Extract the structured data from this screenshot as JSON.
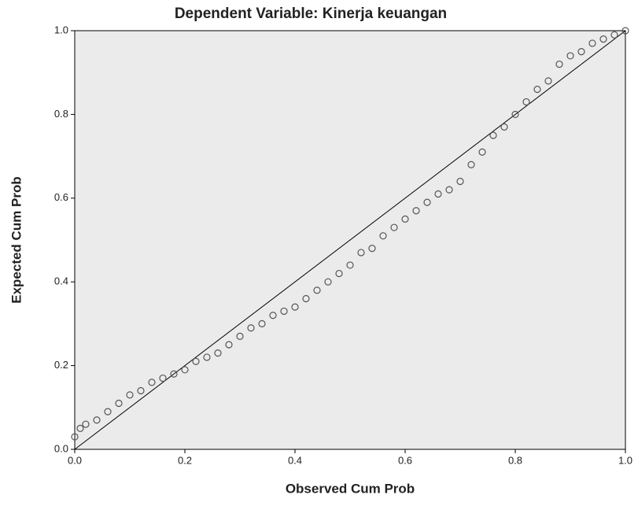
{
  "chart_data": {
    "type": "scatter",
    "title": "Dependent Variable: Kinerja keuangan",
    "x_label": "Observed Cum Prob",
    "y_label": "Expected Cum Prob",
    "x": [
      0.0,
      0.01,
      0.02,
      0.04,
      0.06,
      0.08,
      0.1,
      0.12,
      0.14,
      0.16,
      0.18,
      0.2,
      0.22,
      0.24,
      0.26,
      0.28,
      0.3,
      0.32,
      0.34,
      0.36,
      0.38,
      0.4,
      0.42,
      0.44,
      0.46,
      0.48,
      0.5,
      0.52,
      0.54,
      0.56,
      0.58,
      0.6,
      0.62,
      0.64,
      0.66,
      0.68,
      0.7,
      0.72,
      0.74,
      0.76,
      0.78,
      0.8,
      0.82,
      0.84,
      0.86,
      0.88,
      0.9,
      0.92,
      0.94,
      0.96,
      0.98,
      1.0
    ],
    "values": [
      0.03,
      0.05,
      0.06,
      0.07,
      0.09,
      0.11,
      0.13,
      0.14,
      0.16,
      0.17,
      0.18,
      0.19,
      0.21,
      0.22,
      0.23,
      0.25,
      0.27,
      0.29,
      0.3,
      0.32,
      0.33,
      0.34,
      0.36,
      0.38,
      0.4,
      0.42,
      0.44,
      0.47,
      0.48,
      0.51,
      0.53,
      0.55,
      0.57,
      0.59,
      0.61,
      0.62,
      0.64,
      0.68,
      0.71,
      0.75,
      0.77,
      0.8,
      0.83,
      0.86,
      0.88,
      0.92,
      0.94,
      0.95,
      0.97,
      0.98,
      0.99,
      1.0
    ],
    "reference_line": {
      "x": [
        0,
        1
      ],
      "y": [
        0,
        1
      ]
    },
    "marker_color": "#555555",
    "background": "#ebebeb",
    "xlim": [
      0,
      1
    ],
    "ylim": [
      0,
      1
    ],
    "xticks": [
      {
        "value": 0,
        "label": "0.0"
      },
      0.2,
      0.4,
      0.6,
      0.8,
      {
        "value": 1,
        "label": "1.0"
      }
    ],
    "yticks": [
      {
        "value": 0,
        "label": "0.0"
      },
      0.2,
      0.4,
      0.6,
      0.8,
      {
        "value": 1,
        "label": "1.0"
      }
    ]
  }
}
